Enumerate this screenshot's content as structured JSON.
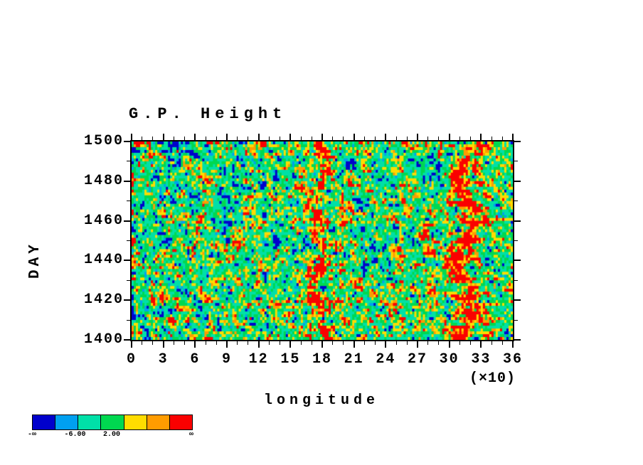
{
  "chart_data": {
    "type": "heatmap",
    "title": "G.P. Height",
    "xlabel": "longitude",
    "x_scale_note": "(×10)",
    "ylabel": "DAY",
    "x_tick_labels": [
      "0",
      "3",
      "6",
      "9",
      "12",
      "15",
      "18",
      "21",
      "24",
      "27",
      "30",
      "33",
      "36"
    ],
    "x_axis_units": [
      0,
      36
    ],
    "x_major_step": 3,
    "x_minor_step": 1,
    "y_tick_labels": [
      "1500",
      "1480",
      "1460",
      "1440",
      "1420",
      "1400"
    ],
    "y_axis_range": [
      1400,
      1500
    ],
    "y_major_step": 20,
    "y_minor_step": 10,
    "grid": false,
    "colorbar": {
      "colors": [
        "#0000cc",
        "#00a0f0",
        "#00e0a8",
        "#00d850",
        "#ffdc00",
        "#ff9c00",
        "#fa0000"
      ],
      "labels": [
        {
          "text": "-∞",
          "pos": 0.0
        },
        {
          "text": "-6.00",
          "pos": 0.27
        },
        {
          "text": "2.00",
          "pos": 0.5
        },
        {
          "text": "∞",
          "pos": 1.0
        }
      ]
    },
    "field": {
      "description": "Hovmoller diagram of geopotential height anomaly vs longitude (0-360) and day (1400-1500); noisy green/turquoise background with yellow speckles, occasional blue and red flecks, and two quasi-stationary meandering red/orange bands centered near longitude 180 and longitude 315",
      "seed": 1337,
      "rows": 70,
      "cols": 178,
      "contrast": 2.6,
      "thresholds": [
        0.05,
        0.11,
        0.42,
        0.66,
        0.84,
        0.93
      ],
      "bands": [
        {
          "center": 178,
          "wiggle": 6,
          "width": 7,
          "amp": 0.62
        },
        {
          "center": 315,
          "wiggle": 9,
          "width": 11,
          "amp": 0.66
        }
      ]
    }
  }
}
